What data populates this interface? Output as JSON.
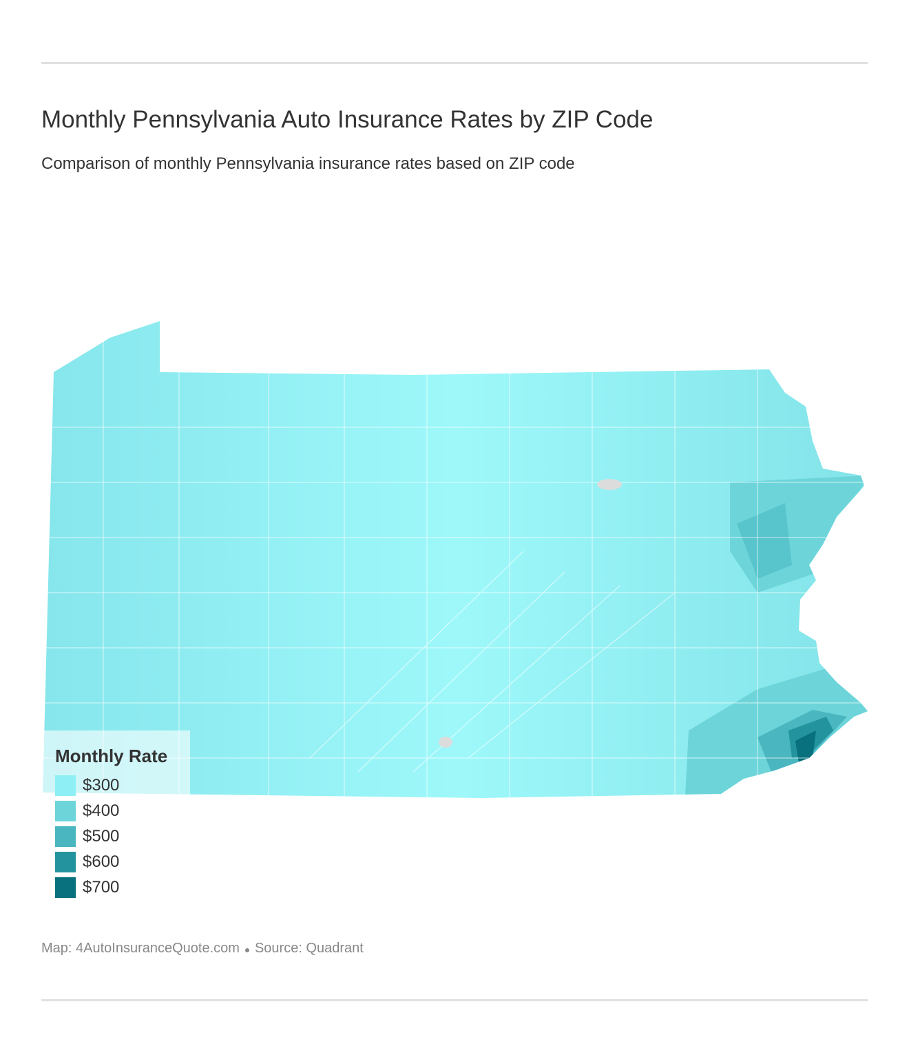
{
  "header": {
    "title": "Monthly Pennsylvania Auto Insurance Rates by ZIP Code",
    "subtitle": "Comparison of monthly Pennsylvania insurance rates based on ZIP code"
  },
  "legend": {
    "title": "Monthly Rate",
    "items": [
      {
        "label": "$300",
        "color": "#8ef0f4"
      },
      {
        "label": "$400",
        "color": "#6dd5da"
      },
      {
        "label": "$500",
        "color": "#4ab6bf"
      },
      {
        "label": "$600",
        "color": "#23949e"
      },
      {
        "label": "$700",
        "color": "#08717d"
      }
    ]
  },
  "footer": {
    "credit": "Map: 4AutoInsuranceQuote.com",
    "source": "Source: Quadrant"
  }
}
